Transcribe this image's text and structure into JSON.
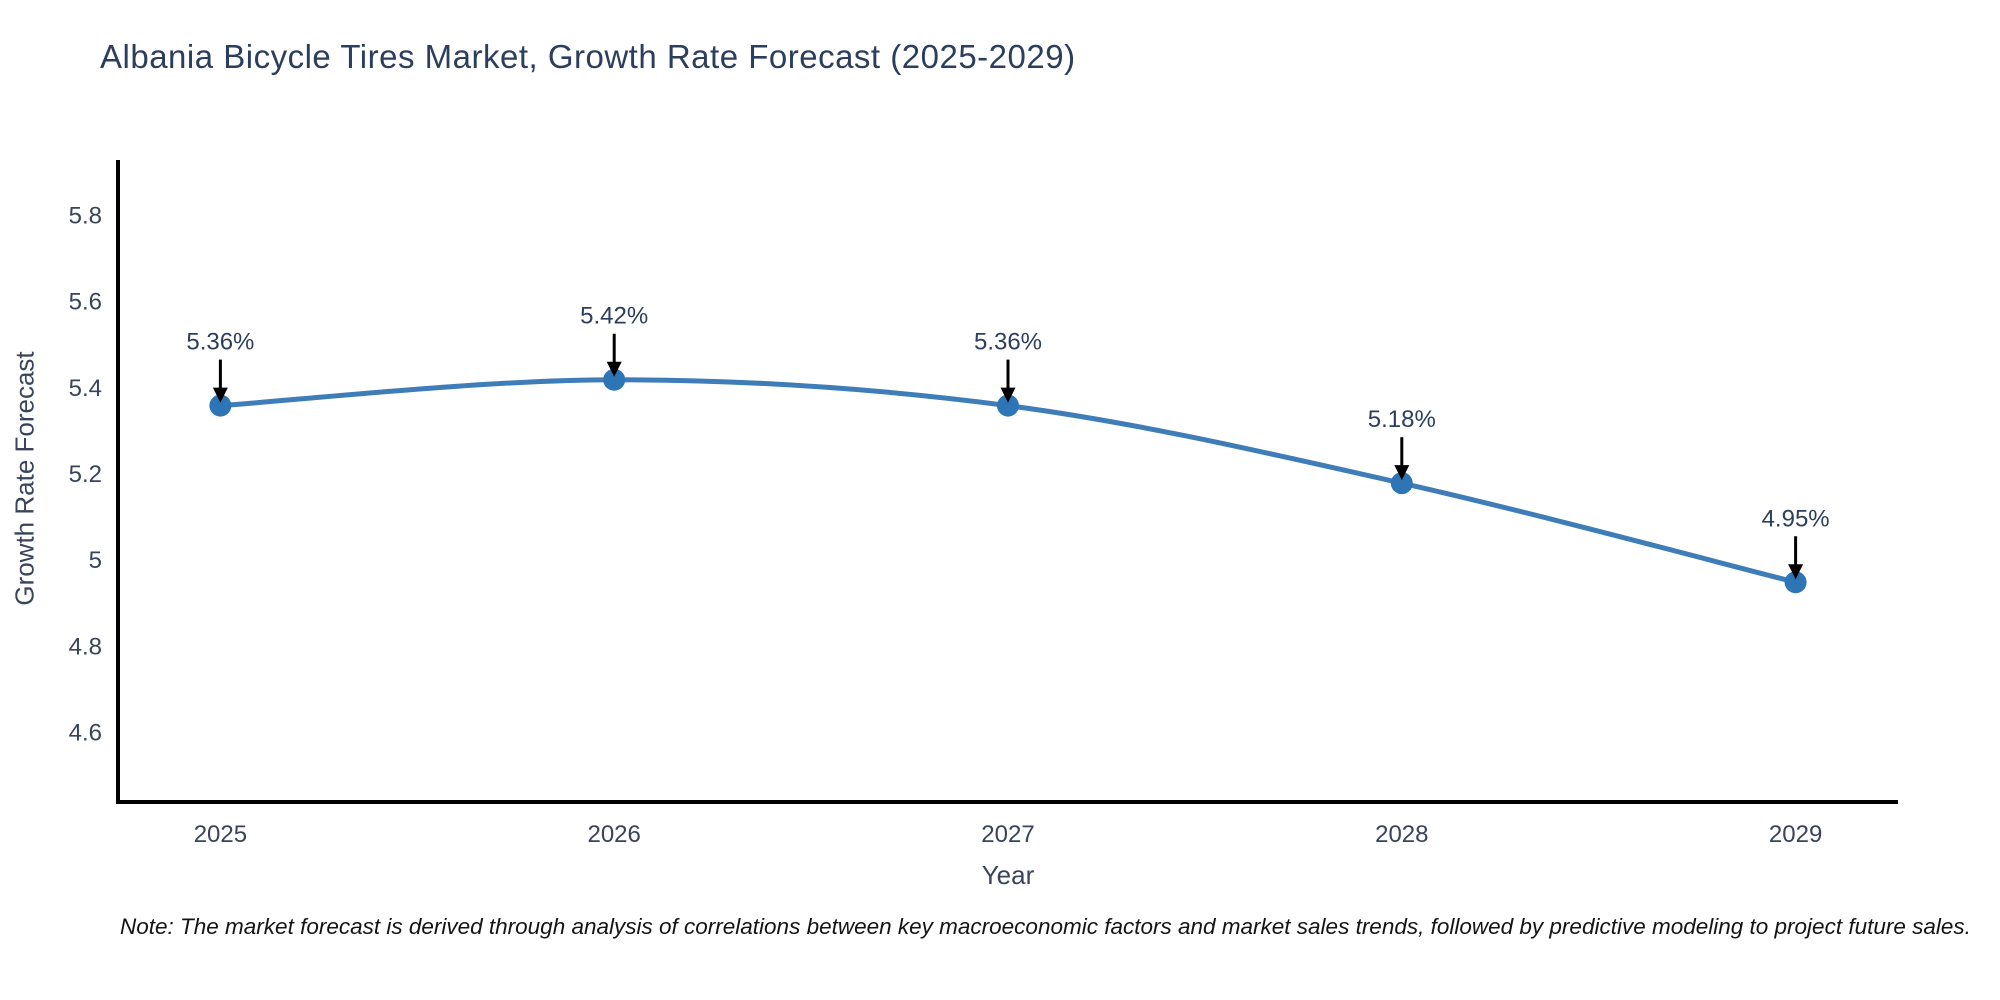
{
  "header": {
    "title": "Albania Bicycle Tires Market, Growth Rate Forecast (2025-2029)"
  },
  "footer": {
    "note": "Note: The market forecast is derived through analysis of correlations between key macroeconomic factors and market sales trends, followed by predictive modeling to project future sales."
  },
  "chart_data": {
    "type": "line",
    "title": "Albania Bicycle Tires Market, Growth Rate Forecast (2025-2029)",
    "xlabel": "Year",
    "ylabel": "Growth Rate Forecast",
    "x": [
      2025,
      2026,
      2027,
      2028,
      2029
    ],
    "y": [
      5.36,
      5.42,
      5.36,
      5.18,
      4.95
    ],
    "point_labels": [
      "5.36%",
      "5.42%",
      "5.36%",
      "5.18%",
      "4.95%"
    ],
    "x_tick_labels": [
      "2025",
      "2026",
      "2027",
      "2028",
      "2029"
    ],
    "y_tick_labels": [
      "4.6",
      "4.8",
      "5",
      "5.2",
      "5.4",
      "5.6",
      "5.8"
    ],
    "y_tick_values": [
      4.6,
      4.8,
      5.0,
      5.2,
      5.4,
      5.6,
      5.8
    ],
    "xlim": [
      2024.74,
      2029.26
    ],
    "ylim": [
      4.44,
      5.93
    ],
    "grid": false,
    "legend": null,
    "line_shape": "spline",
    "colors": {
      "line": "#3e7db8",
      "marker": "#2e75b6",
      "axis": "#000000",
      "arrow": "#000000",
      "annotation_text": "#2c3e5d",
      "tick_text": "#39445a"
    }
  }
}
